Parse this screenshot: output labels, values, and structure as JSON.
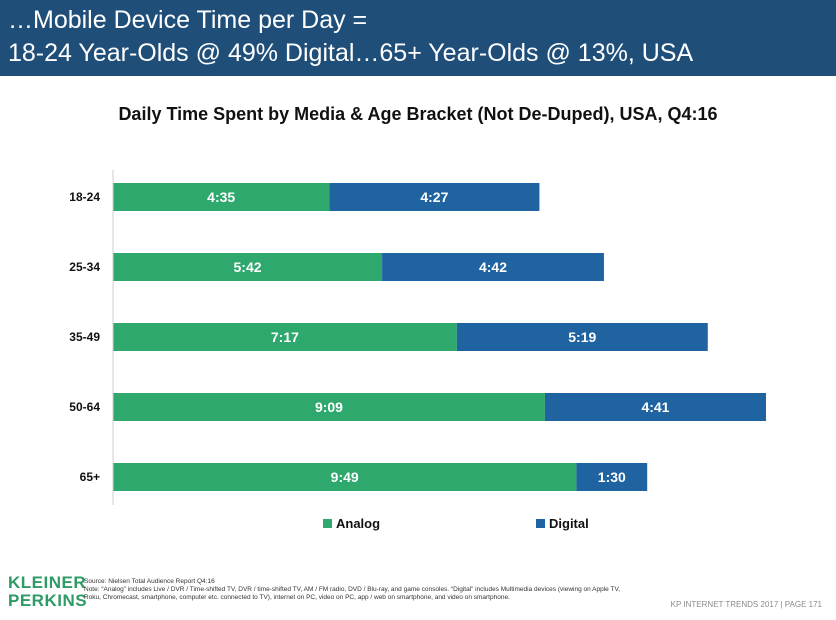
{
  "header": {
    "line1": "…Mobile Device Time per Day =",
    "line2": "18-24 Year-Olds @ 49% Digital…65+ Year-Olds @ 13%, USA"
  },
  "chart_data": {
    "type": "bar",
    "orientation": "horizontal",
    "stacked": true,
    "title": "Daily Time Spent by Media & Age Bracket (Not De-Duped), USA, Q4:16",
    "categories": [
      "18-24",
      "25-34",
      "35-49",
      "50-64",
      "65+"
    ],
    "series": [
      {
        "name": "Analog",
        "color": "#2ea86d",
        "values_minutes": [
          275,
          342,
          437,
          549,
          589
        ],
        "labels": [
          "4:35",
          "5:42",
          "7:17",
          "9:09",
          "9:49"
        ]
      },
      {
        "name": "Digital",
        "color": "#1f64a0",
        "values_minutes": [
          267,
          282,
          319,
          281,
          90
        ],
        "labels": [
          "4:27",
          "4:42",
          "5:19",
          "4:41",
          "1:30"
        ]
      }
    ],
    "xlim_minutes": [
      0,
      830
    ],
    "grid": false,
    "legend": "bottom"
  },
  "footer": {
    "logo_line1": "KLEINER",
    "logo_line2": "PERKINS",
    "source": "Source: Nielsen Total Audience Report Q4:16",
    "note": "Note: “Analog” includes Live / DVR / Time-shifted TV, DVR / time-shifted TV, AM / FM radio, DVD / Blu-ray, and game consoles. “Digital” includes Multimedia devices (viewing on Apple TV, Roku, Chromecast, smartphone, computer etc. connected to TV), internet on PC, video on PC, app / web on smartphone, and video on smartphone.",
    "page": "KP INTERNET TRENDS 2017 | PAGE 171"
  }
}
